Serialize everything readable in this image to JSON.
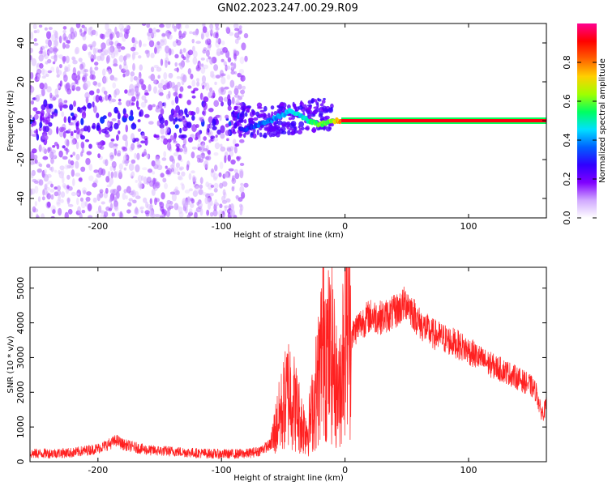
{
  "title": "GN02.2023.247.00.29.R09",
  "chart_data": [
    {
      "type": "heatmap",
      "xlabel": "Height of straight line (km)",
      "ylabel": "Frequency (Hz)",
      "xlim": [
        -255,
        163
      ],
      "ylim": [
        -50,
        50
      ],
      "xticks": [
        -200,
        -100,
        0,
        100
      ],
      "yticks": [
        -40,
        -20,
        0,
        20,
        40
      ],
      "colorbar": {
        "label": "Normalized spectral amplitude",
        "range": [
          0,
          1
        ],
        "ticks": [
          "0.0",
          "0.2",
          "0.4",
          "0.6",
          "0.8"
        ],
        "colors": [
          "#ffffff",
          "#d0a8ff",
          "#8000ff",
          "#3000ff",
          "#0060ff",
          "#00e0ff",
          "#00ff60",
          "#a0ff00",
          "#ffd000",
          "#ff6000",
          "#ff0000",
          "#ff0090"
        ]
      },
      "noise_region_km": [
        -255,
        -80
      ],
      "signal_track": [
        {
          "x": -85,
          "y": -4,
          "amp": 0.25
        },
        {
          "x": -80,
          "y": -5,
          "amp": 0.3
        },
        {
          "x": -75,
          "y": -3,
          "amp": 0.32
        },
        {
          "x": -70,
          "y": -2,
          "amp": 0.35
        },
        {
          "x": -65,
          "y": -1,
          "amp": 0.35
        },
        {
          "x": -60,
          "y": 0,
          "amp": 0.38
        },
        {
          "x": -55,
          "y": 2,
          "amp": 0.4
        },
        {
          "x": -50,
          "y": 3,
          "amp": 0.42
        },
        {
          "x": -45,
          "y": 5,
          "amp": 0.45
        },
        {
          "x": -40,
          "y": 4,
          "amp": 0.45
        },
        {
          "x": -35,
          "y": 2,
          "amp": 0.45
        },
        {
          "x": -30,
          "y": 0,
          "amp": 0.5
        },
        {
          "x": -25,
          "y": -1,
          "amp": 0.55
        },
        {
          "x": -20,
          "y": -2,
          "amp": 0.6
        },
        {
          "x": -15,
          "y": -1,
          "amp": 0.55
        },
        {
          "x": -10,
          "y": 0,
          "amp": 0.65
        },
        {
          "x": -5,
          "y": 0,
          "amp": 0.75
        },
        {
          "x": 0,
          "y": 0,
          "amp": 0.9
        },
        {
          "x": 163,
          "y": 0,
          "amp": 0.9
        }
      ]
    },
    {
      "type": "line",
      "xlabel": "Height of straight line (km)",
      "ylabel": "SNR (10 * v/v)",
      "xlim": [
        -255,
        163
      ],
      "ylim": [
        0,
        5600
      ],
      "xticks": [
        -200,
        -100,
        0,
        100
      ],
      "yticks": [
        0,
        1000,
        2000,
        3000,
        4000,
        5000
      ],
      "color": "#ff2020",
      "series": [
        {
          "x": [
            -255,
            -240,
            -220,
            -200,
            -190,
            -185,
            -180,
            -160,
            -140,
            -120,
            -100,
            -80,
            -70,
            -60,
            -55,
            -50,
            -45,
            -40,
            -35,
            -30,
            -25,
            -20,
            -17,
            -15,
            -12,
            -10,
            -8,
            -5,
            -2,
            0,
            5,
            10,
            20,
            30,
            40,
            50,
            55,
            60,
            70,
            80,
            90,
            100,
            110,
            120,
            130,
            140,
            150,
            155,
            158,
            160,
            163
          ],
          "y": [
            230,
            240,
            260,
            380,
            520,
            620,
            500,
            330,
            300,
            250,
            220,
            230,
            300,
            500,
            1100,
            1600,
            2100,
            1600,
            1100,
            900,
            1700,
            2800,
            4000,
            3200,
            3000,
            3100,
            2400,
            1900,
            3000,
            4700,
            3600,
            3900,
            4200,
            4150,
            4300,
            4600,
            4300,
            4000,
            3700,
            3550,
            3400,
            3200,
            2950,
            2750,
            2600,
            2400,
            2200,
            2000,
            1500,
            1400,
            1600
          ]
        }
      ]
    }
  ]
}
